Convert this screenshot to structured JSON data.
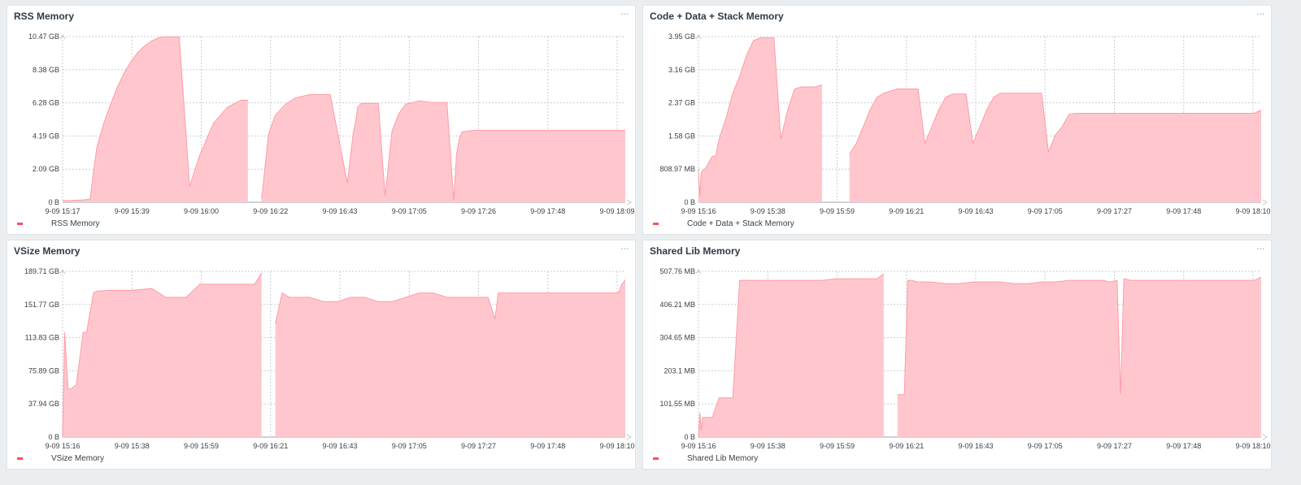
{
  "colors": {
    "fill": "#ffc7cd",
    "stroke": "#ff9aa5",
    "legend": "#ff4d5e",
    "grid": "#c9ced2",
    "background": "#ebeef0"
  },
  "menu_label": "···",
  "chart_data": [
    {
      "type": "area",
      "title": "RSS Memory",
      "legend": [
        "RSS Memory"
      ],
      "ylim": [
        0,
        10.47
      ],
      "y_ticks": [
        "0 B",
        "2.09 GB",
        "4.19 GB",
        "6.28 GB",
        "8.38 GB",
        "10.47 GB"
      ],
      "x_ticks": [
        "9-09 15:17",
        "9-09 15:39",
        "9-09 16:00",
        "9-09 16:22",
        "9-09 16:43",
        "9-09 17:05",
        "9-09 17:26",
        "9-09 17:48",
        "9-09 18:09"
      ],
      "series": [
        {
          "x": [
            0,
            0.05,
            0.3,
            0.4,
            0.45,
            0.5,
            0.6,
            0.7,
            0.8,
            0.9,
            1.0,
            1.1,
            1.2,
            1.3,
            1.4,
            1.5,
            1.6,
            1.7,
            1.85,
            2.0,
            2.2,
            2.4,
            2.6,
            2.7,
            2.74,
            2.78,
            2.82,
            2.9,
            3.0,
            3.1,
            3.25,
            3.4,
            3.6,
            3.8,
            3.9,
            4.15,
            4.23,
            4.28,
            4.3,
            4.35,
            4.4,
            4.5,
            4.6,
            4.7,
            4.8,
            4.9,
            5.0,
            5.2,
            5.4,
            5.6,
            5.7,
            5.74,
            5.78,
            5.82,
            5.9,
            6.0,
            6.1,
            6.2,
            6.3,
            6.35,
            6.39,
            6.43,
            6.47,
            6.55,
            6.65,
            6.75,
            6.85,
            6.95,
            7.05,
            7.15,
            7.25,
            7.35,
            8.2
          ],
          "y": [
            0.1,
            0.1,
            0.15,
            0.2,
            1.9,
            3.5,
            5.0,
            6.2,
            7.3,
            8.2,
            8.9,
            9.5,
            9.9,
            10.2,
            10.4,
            10.45,
            10.45,
            10.45,
            1.0,
            3.0,
            5.0,
            6.0,
            6.45,
            6.45,
            null,
            null,
            null,
            0.2,
            4.3,
            5.5,
            6.2,
            6.6,
            6.8,
            6.8,
            6.8,
            1.2,
            4.2,
            5.4,
            6.0,
            6.25,
            6.25,
            6.25,
            6.25,
            0.4,
            4.5,
            5.6,
            6.2,
            6.4,
            6.3,
            6.3,
            0.1,
            3.0,
            4.0,
            4.45,
            4.5,
            4.55,
            4.55,
            4.55,
            4.55,
            4.55,
            4.55,
            4.55,
            4.55,
            4.55,
            4.55,
            4.55,
            4.55,
            4.55,
            4.55,
            4.55,
            4.55,
            4.55,
            4.55
          ]
        }
      ]
    },
    {
      "type": "area",
      "title": "Code + Data + Stack Memory",
      "legend": [
        "Code + Data + Stack Memory"
      ],
      "ylim": [
        0,
        3.95
      ],
      "y_ticks": [
        "0 B",
        "808.97 MB",
        "1.58 GB",
        "2.37 GB",
        "3.16 GB",
        "3.95 GB"
      ],
      "x_ticks": [
        "9-09 15:16",
        "9-09 15:38",
        "9-09 15:59",
        "9-09 16:21",
        "9-09 16:43",
        "9-09 17:05",
        "9-09 17:27",
        "9-09 17:48",
        "9-09 18:10"
      ],
      "series": [
        {
          "x": [
            0,
            0.02,
            0.04,
            0.06,
            0.1,
            0.2,
            0.25,
            0.3,
            0.4,
            0.5,
            0.6,
            0.7,
            0.8,
            0.9,
            1.0,
            1.1,
            1.2,
            1.3,
            1.4,
            1.5,
            1.6,
            1.65,
            1.7,
            1.8,
            1.9,
            2.0,
            2.1,
            2.2,
            2.3,
            2.4,
            2.5,
            2.6,
            2.7,
            2.8,
            2.9,
            3.0,
            3.1,
            3.2,
            3.3,
            3.4,
            3.5,
            3.6,
            3.7,
            3.75,
            3.8,
            3.85,
            3.9,
            4.0,
            4.1,
            4.2,
            4.3,
            4.4,
            4.5,
            4.6,
            4.7,
            4.8,
            4.9,
            5.0,
            5.1,
            5.2,
            5.3,
            5.4,
            5.5,
            5.6,
            5.7,
            5.8,
            5.9,
            6.0,
            6.1,
            6.2,
            6.3,
            6.4,
            6.5,
            6.6,
            6.7,
            6.8,
            6.9,
            7.0,
            7.1,
            7.2,
            7.3,
            7.4,
            7.5,
            7.6,
            7.7,
            7.8,
            7.9,
            8.0,
            8.1,
            8.2
          ],
          "y": [
            0.8,
            0.15,
            0.7,
            0.75,
            0.8,
            1.1,
            1.1,
            1.5,
            2.0,
            2.6,
            3.0,
            3.5,
            3.85,
            3.92,
            3.92,
            3.92,
            1.5,
            2.2,
            2.7,
            2.75,
            2.75,
            2.75,
            2.75,
            2.8,
            null,
            null,
            null,
            1.15,
            1.4,
            1.8,
            2.2,
            2.5,
            2.6,
            2.65,
            2.7,
            2.7,
            2.7,
            2.7,
            1.4,
            1.8,
            2.2,
            2.5,
            2.58,
            2.58,
            2.58,
            2.58,
            2.58,
            1.4,
            1.8,
            2.2,
            2.5,
            2.6,
            2.6,
            2.6,
            2.6,
            2.6,
            2.6,
            2.6,
            1.2,
            1.6,
            1.8,
            2.1,
            2.12,
            2.12,
            2.12,
            2.12,
            2.12,
            2.12,
            2.12,
            2.12,
            2.12,
            2.12,
            2.12,
            2.12,
            2.12,
            2.12,
            2.12,
            2.12,
            2.12,
            2.12,
            2.12,
            2.12,
            2.12,
            2.12,
            2.12,
            2.12,
            2.12,
            2.12,
            2.12,
            2.2
          ]
        }
      ]
    },
    {
      "type": "area",
      "title": "VSize Memory",
      "legend": [
        "VSize Memory"
      ],
      "ylim": [
        0,
        189.71
      ],
      "y_ticks": [
        "0 B",
        "37.94 GB",
        "75.89 GB",
        "113.83 GB",
        "151.77 GB",
        "189.71 GB"
      ],
      "x_ticks": [
        "9-09 15:16",
        "9-09 15:38",
        "9-09 15:59",
        "9-09 16:21",
        "9-09 16:43",
        "9-09 17:05",
        "9-09 17:27",
        "9-09 17:48",
        "9-09 18:10"
      ],
      "series": [
        {
          "x": [
            0,
            0.03,
            0.08,
            0.12,
            0.2,
            0.3,
            0.35,
            0.45,
            0.5,
            0.7,
            1.0,
            1.3,
            1.5,
            1.8,
            2.0,
            2.2,
            2.5,
            2.8,
            2.9,
            2.94,
            2.98,
            3.02,
            3.1,
            3.2,
            3.3,
            3.4,
            3.6,
            3.8,
            4.0,
            4.2,
            4.4,
            4.6,
            4.8,
            5.0,
            5.2,
            5.4,
            5.6,
            5.8,
            6.0,
            6.2,
            6.3,
            6.35,
            6.4,
            6.6,
            6.8,
            7.0,
            7.2,
            7.4,
            7.6,
            7.8,
            8.0,
            8.1,
            8.15,
            8.2
          ],
          "y": [
            0,
            120,
            55,
            55,
            60,
            120,
            120,
            165,
            167,
            168,
            168,
            170,
            160,
            160,
            175,
            175,
            175,
            175,
            188,
            null,
            null,
            null,
            130,
            165,
            160,
            160,
            160,
            155,
            155,
            160,
            160,
            155,
            155,
            160,
            165,
            165,
            160,
            160,
            160,
            160,
            135,
            165,
            165,
            165,
            165,
            165,
            165,
            165,
            165,
            165,
            165,
            165,
            175,
            180
          ]
        }
      ]
    },
    {
      "type": "area",
      "title": "Shared Lib Memory",
      "legend": [
        "Shared Lib Memory"
      ],
      "ylim": [
        0,
        507.76
      ],
      "y_ticks": [
        "0 B",
        "101.55 MB",
        "203.1 MB",
        "304.65 MB",
        "406.21 MB",
        "507.76 MB"
      ],
      "x_ticks": [
        "9-09 15:16",
        "9-09 15:38",
        "9-09 15:59",
        "9-09 16:21",
        "9-09 16:43",
        "9-09 17:05",
        "9-09 17:27",
        "9-09 17:48",
        "9-09 18:10"
      ],
      "series": [
        {
          "x": [
            0,
            0.02,
            0.04,
            0.06,
            0.1,
            0.2,
            0.3,
            0.4,
            0.5,
            0.6,
            0.7,
            0.8,
            0.9,
            1.0,
            1.2,
            1.4,
            1.6,
            1.8,
            2.0,
            2.2,
            2.4,
            2.6,
            2.7,
            2.74,
            2.78,
            2.82,
            2.9,
            3.0,
            3.05,
            3.1,
            3.2,
            3.4,
            3.6,
            3.8,
            4.0,
            4.2,
            4.4,
            4.6,
            4.8,
            5.0,
            5.2,
            5.4,
            5.6,
            5.7,
            5.8,
            5.9,
            6.0,
            6.1,
            6.15,
            6.2,
            6.3,
            6.4,
            6.6,
            6.8,
            7.0,
            7.2,
            7.4,
            7.6,
            7.8,
            8.0,
            8.1,
            8.15,
            8.2
          ],
          "y": [
            0,
            75,
            20,
            60,
            60,
            60,
            120,
            120,
            120,
            480,
            480,
            480,
            480,
            480,
            480,
            480,
            480,
            480,
            485,
            485,
            485,
            485,
            500,
            null,
            null,
            null,
            130,
            130,
            480,
            480,
            475,
            475,
            470,
            470,
            475,
            475,
            475,
            470,
            470,
            475,
            475,
            480,
            480,
            480,
            480,
            480,
            475,
            480,
            130,
            485,
            480,
            480,
            480,
            480,
            480,
            480,
            480,
            480,
            480,
            480,
            480,
            485,
            490
          ]
        }
      ]
    }
  ]
}
